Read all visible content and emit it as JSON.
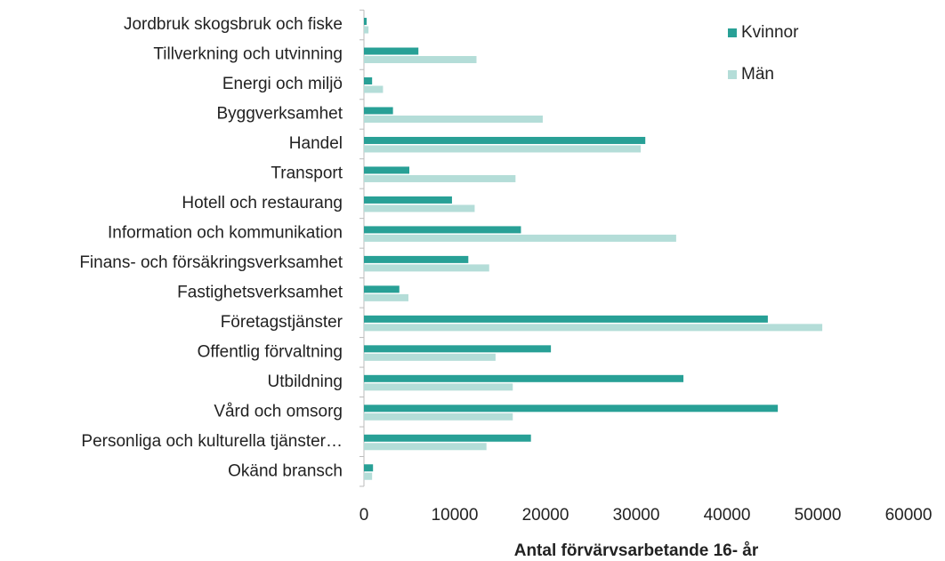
{
  "chart_data": {
    "type": "bar",
    "orientation": "horizontal",
    "x_label": "Antal förvärvsarbetande 16- år",
    "categories": [
      "Jordbruk skogsbruk och fiske",
      "Tillverkning och utvinning",
      "Energi och miljö",
      "Byggverksamhet",
      "Handel",
      "Transport",
      "Hotell och restaurang",
      "Information och kommunikation",
      "Finans- och försäkringsverksamhet",
      "Fastighetsverksamhet",
      "Företagstjänster",
      "Offentlig förvaltning",
      "Utbildning",
      "Vård och omsorg",
      "Personliga och kulturella tjänster…",
      "Okänd bransch"
    ],
    "series": [
      {
        "name": "Kvinnor",
        "color": "#28a096",
        "values": [
          300,
          6000,
          900,
          3200,
          31000,
          5000,
          9700,
          17300,
          11500,
          3900,
          44500,
          20600,
          35200,
          45600,
          18400,
          1000
        ]
      },
      {
        "name": "Män",
        "color": "#b4ddd8",
        "values": [
          500,
          12400,
          2100,
          19700,
          30500,
          16700,
          12200,
          34400,
          13800,
          4900,
          50500,
          14500,
          16400,
          16400,
          13500,
          900
        ]
      }
    ],
    "xlim": [
      0,
      60000
    ],
    "xticks": [
      0,
      10000,
      20000,
      30000,
      40000,
      50000,
      60000
    ],
    "grid": false,
    "legend": "top-right"
  }
}
